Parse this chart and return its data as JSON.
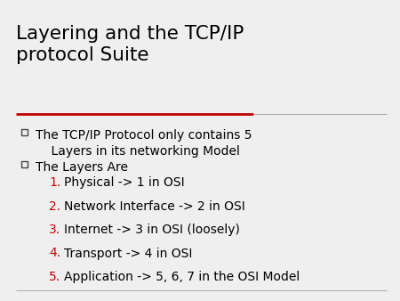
{
  "title_line1": "Layering and the TCP/IP",
  "title_line2": "protocol Suite",
  "bg_color": "#efefef",
  "title_color": "#000000",
  "title_fontsize": 15.5,
  "divider_color_top": "#c00000",
  "divider_color_bottom": "#b0b0b0",
  "bullet_fontsize": 10,
  "numbered_color": "#cc0000",
  "numbered_fontsize": 10,
  "text_color": "#000000",
  "bullets": [
    "The TCP/IP Protocol only contains 5\n    Layers in its networking Model",
    "The Layers Are"
  ],
  "numbered_items": [
    "Physical -> 1 in OSI",
    "Network Interface -> 2 in OSI",
    "Internet -> 3 in OSI (loosely)",
    "Transport -> 4 in OSI",
    "Application -> 5, 6, 7 in the OSI Model"
  ]
}
